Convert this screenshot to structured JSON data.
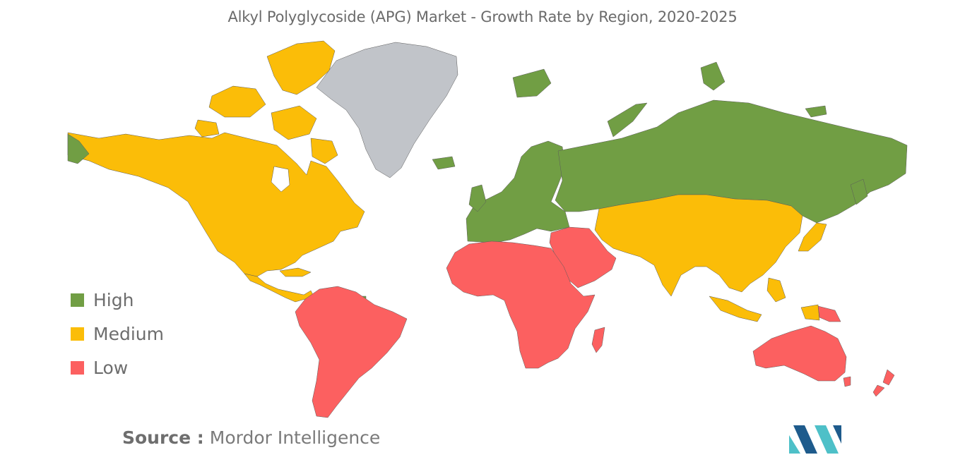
{
  "title": "Alkyl Polyglycoside (APG) Market - Growth Rate by Region, 2020-2025",
  "colors": {
    "high": "#719e44",
    "medium": "#fbbd08",
    "low": "#fc6060",
    "no_data": "#c1c4c9",
    "logo_light": "#4ec0c8",
    "logo_dark": "#1e5b8c"
  },
  "legend": [
    {
      "label": "High",
      "category": "high"
    },
    {
      "label": "Medium",
      "category": "medium"
    },
    {
      "label": "Low",
      "category": "low"
    }
  ],
  "regions": {
    "north_america": "medium",
    "central_america": "medium",
    "greenland": "no_data",
    "south_america": "low",
    "europe": "high",
    "russia": "high",
    "middle_east": "low",
    "africa": "low",
    "asia_pacific": "medium",
    "australia_new_zealand": "low"
  },
  "source": {
    "label": "Source :",
    "value": "Mordor Intelligence"
  },
  "logo": {
    "name": "mordor-intelligence-logo"
  }
}
